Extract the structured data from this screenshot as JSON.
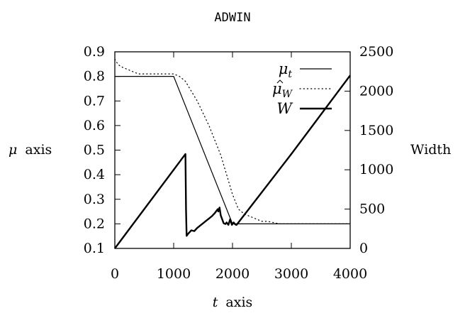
{
  "chart_data": {
    "type": "line",
    "title": "ADWIN",
    "xlabel_var": "t",
    "xlabel_text": "axis",
    "ylabel_var": "μ",
    "ylabel_text": "axis",
    "y2label": "Width",
    "xlim": [
      0,
      4000
    ],
    "ylim": [
      0.1,
      0.9
    ],
    "y2lim": [
      0,
      2500
    ],
    "x_ticks": [
      0,
      1000,
      2000,
      3000,
      4000
    ],
    "y_ticks": [
      0.1,
      0.2,
      0.3,
      0.4,
      0.5,
      0.6,
      0.7,
      0.8,
      0.9
    ],
    "y2_ticks": [
      0,
      500,
      1000,
      1500,
      2000,
      2500
    ],
    "grid": false,
    "legend_placement": "top-right",
    "series": [
      {
        "name": "μ_t",
        "axis": "left",
        "style": "thin-solid",
        "x": [
          0,
          1000,
          2000,
          4000
        ],
        "y": [
          0.8,
          0.8,
          0.2,
          0.2
        ]
      },
      {
        "name": "μ̂_W",
        "axis": "left",
        "style": "dotted",
        "x": [
          0,
          50,
          100,
          200,
          300,
          400,
          500,
          600,
          700,
          800,
          900,
          1000,
          1100,
          1200,
          1300,
          1400,
          1500,
          1600,
          1700,
          1800,
          1900,
          2000,
          2050,
          2100,
          2200,
          2300,
          2400,
          2500,
          2600,
          2800,
          3000,
          3500,
          4000
        ],
        "y": [
          0.87,
          0.85,
          0.84,
          0.83,
          0.82,
          0.81,
          0.81,
          0.81,
          0.81,
          0.81,
          0.81,
          0.81,
          0.8,
          0.78,
          0.74,
          0.7,
          0.65,
          0.6,
          0.54,
          0.48,
          0.4,
          0.32,
          0.29,
          0.26,
          0.24,
          0.23,
          0.22,
          0.21,
          0.21,
          0.2,
          0.2,
          0.2,
          0.2
        ]
      },
      {
        "name": "W",
        "axis": "right",
        "style": "thick-solid",
        "x": [
          0,
          1200,
          1210,
          1220,
          1250,
          1300,
          1350,
          1400,
          1450,
          1500,
          1550,
          1600,
          1650,
          1700,
          1750,
          1760,
          1780,
          1800,
          1820,
          1850,
          1880,
          1900,
          1930,
          1960,
          1990,
          2020,
          2040,
          2060,
          2070,
          3000,
          3400,
          3500,
          4000
        ],
        "y": [
          0,
          1200,
          500,
          160,
          190,
          230,
          220,
          260,
          290,
          320,
          350,
          380,
          410,
          450,
          500,
          470,
          520,
          420,
          380,
          320,
          310,
          330,
          300,
          370,
          300,
          330,
          310,
          300,
          300,
          1200,
          1600,
          1700,
          2200
        ]
      }
    ]
  }
}
